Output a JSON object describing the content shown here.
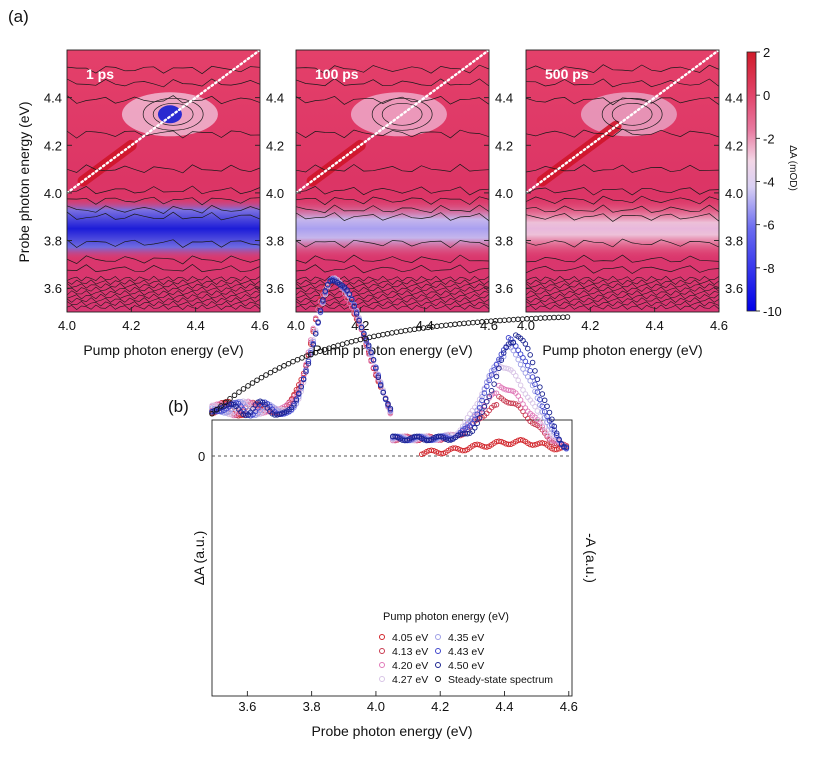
{
  "panel_labels": {
    "a": "(a)",
    "b": "(b)"
  },
  "chart_data": [
    {
      "type": "heatmap",
      "panels": [
        {
          "time": "1 ps",
          "variant": "p1"
        },
        {
          "time": "100 ps",
          "variant": "p100"
        },
        {
          "time": "500 ps",
          "variant": "p500"
        }
      ],
      "xlabel": "Pump photon energy (eV)",
      "ylabel": "Probe photon energy (eV)",
      "xlim": [
        4.0,
        4.6
      ],
      "ylim": [
        3.5,
        4.6
      ],
      "xticks": [
        "4.0",
        "4.2",
        "4.4",
        "4.6"
      ],
      "yticks": [
        "3.6",
        "3.8",
        "4.0",
        "4.2",
        "4.4"
      ],
      "colorbar": {
        "label": "ΔA (mOD)",
        "range": [
          -10,
          2
        ],
        "ticks": [
          "2",
          "0",
          "-2",
          "-4",
          "-6",
          "-8",
          "-10"
        ],
        "colors": [
          "#d01b2a",
          "#e2456c",
          "#ffffff",
          "#0000e8"
        ]
      },
      "diagonal": "dotted white line probe = pump"
    },
    {
      "type": "scatter",
      "title": "",
      "xlabel": "Probe photon energy (eV)",
      "ylabel": "ΔA (a.u.)",
      "ylabel_right": "-A (a.u.)",
      "xlim": [
        3.49,
        4.61
      ],
      "xticks": [
        "3.6",
        "3.8",
        "4.0",
        "4.2",
        "4.4",
        "4.6"
      ],
      "zero_label": "0",
      "legend_title": "Pump photon energy (eV)",
      "series": [
        {
          "name": "4.05 eV",
          "color": "#d2262c",
          "trough_y": -1.0,
          "trough_x": 3.86,
          "high_y": -0.05,
          "high_x": 4.17,
          "high_edge": "4.11",
          "end": "4.60"
        },
        {
          "name": "4.13 eV",
          "color": "#c8394f",
          "trough_y": -1.0,
          "trough_x": 3.86,
          "high_y": -0.33,
          "high_x": 4.38,
          "high_edge": "4.10",
          "end": "4.60"
        },
        {
          "name": "4.20 eV",
          "color": "#e079b8",
          "trough_y": -1.0,
          "trough_x": 3.86,
          "high_y": -0.4,
          "high_x": 4.38,
          "high_edge": "4.10",
          "end": "4.60"
        },
        {
          "name": "4.27 eV",
          "color": "#d8c4e6",
          "trough_y": -1.0,
          "trough_x": 3.87,
          "high_y": -0.52,
          "high_x": 4.38,
          "high_edge": "4.10",
          "end": "4.60"
        },
        {
          "name": "4.35 eV",
          "color": "#9e9fe6",
          "trough_y": -1.0,
          "trough_x": 3.87,
          "high_y": -0.62,
          "high_x": 4.4,
          "high_edge": "4.10",
          "end": "4.60"
        },
        {
          "name": "4.43 eV",
          "color": "#3e45cc",
          "trough_y": -1.0,
          "trough_x": 3.87,
          "high_y": -0.66,
          "high_x": 4.41,
          "high_edge": "4.10",
          "end": "4.60"
        },
        {
          "name": "4.50 eV",
          "color": "#1a2390",
          "trough_y": -1.0,
          "trough_x": 3.87,
          "high_y": -0.7,
          "high_x": 4.43,
          "high_edge": "4.10",
          "end": "4.60"
        },
        {
          "name": "Steady-state spectrum",
          "color": "#111111",
          "start_y": -0.24,
          "end_y": -0.79
        }
      ]
    }
  ]
}
